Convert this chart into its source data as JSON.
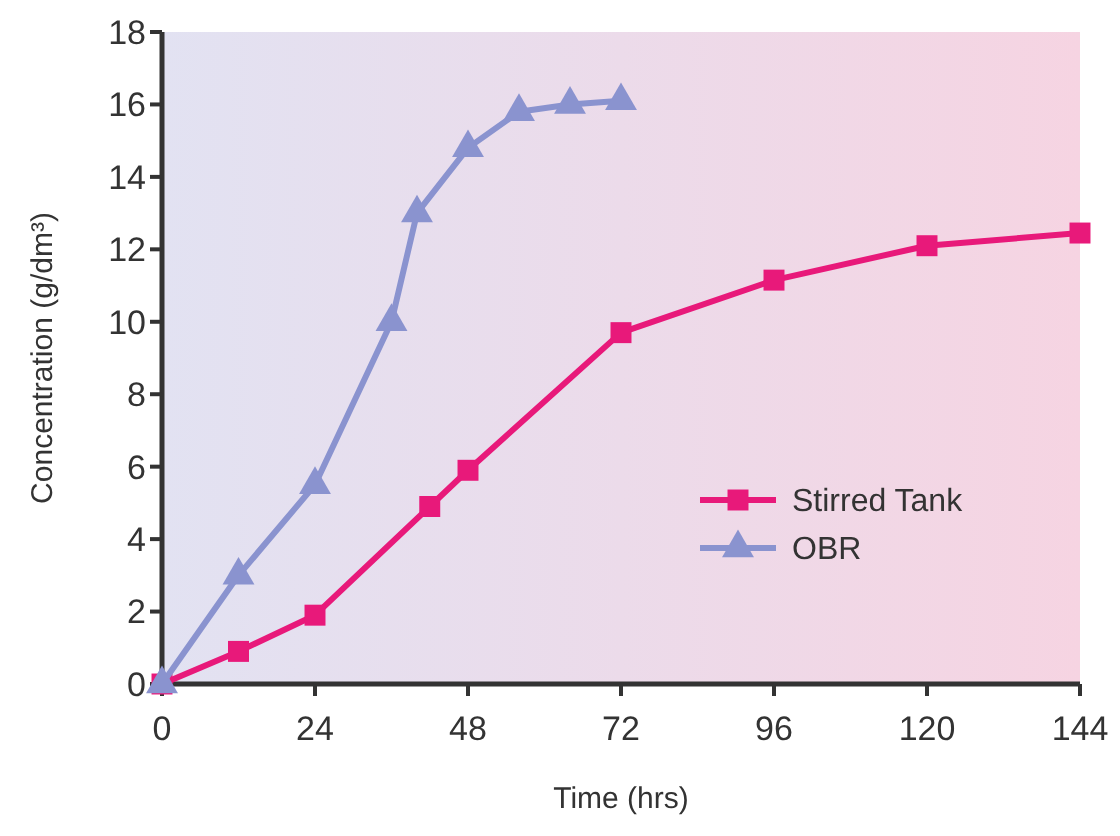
{
  "chart_data": {
    "type": "line",
    "xlabel": "Time (hrs)",
    "ylabel": "Concentration (g/dm³)",
    "xlim": [
      0,
      144
    ],
    "xticks": [
      0,
      24,
      48,
      72,
      96,
      120,
      144
    ],
    "ylim": [
      0,
      18
    ],
    "yticks": [
      0,
      2,
      4,
      6,
      8,
      10,
      12,
      14,
      16,
      18
    ],
    "grid": false,
    "legend": "right",
    "line_style": "solid",
    "series": [
      {
        "name": "Stirred Tank",
        "color": "#e8197a",
        "marker": "square",
        "x": [
          0,
          12,
          24,
          42,
          48,
          72,
          96,
          120,
          144
        ],
        "values": [
          0,
          0.9,
          1.9,
          4.9,
          5.9,
          9.7,
          11.15,
          12.1,
          12.45
        ]
      },
      {
        "name": "OBR",
        "color": "#8a93cf",
        "marker": "triangle",
        "x": [
          0,
          12,
          24,
          36,
          40,
          48,
          56,
          64,
          72
        ],
        "values": [
          0,
          3.0,
          5.5,
          10.0,
          13.0,
          14.8,
          15.8,
          16.0,
          16.1
        ]
      }
    ]
  }
}
